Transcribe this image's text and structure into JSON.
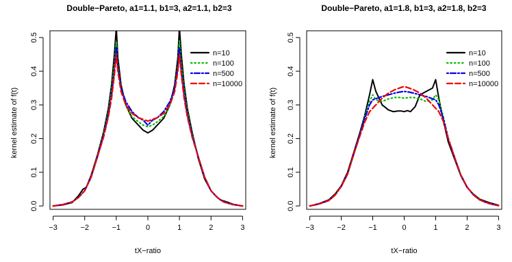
{
  "chart_data": [
    {
      "type": "line",
      "title": "Double−Pareto, a1=1.1, b1=3, a2=1.1, b2=3",
      "xlabel": "tX−ratio",
      "ylabel": "kernel estimate of f(t)",
      "xlim": [
        -3.1,
        3.1
      ],
      "ylim": [
        -0.01,
        0.52
      ],
      "xticks": [
        -3,
        -2,
        -1,
        0,
        1,
        2,
        3
      ],
      "xtick_labels": [
        "−3",
        "−2",
        "−1",
        "0",
        "1",
        "2",
        "3"
      ],
      "yticks": [
        0.0,
        0.1,
        0.2,
        0.3,
        0.4,
        0.5
      ],
      "ytick_labels": [
        "0.0",
        "0.1",
        "0.2",
        "0.3",
        "0.4",
        "0.5"
      ],
      "grid": false,
      "legend_position": "top-right",
      "series": [
        {
          "name": "n=10",
          "color": "#000000",
          "line_style": "solid",
          "x": [
            -3.0,
            -2.7,
            -2.4,
            -2.2,
            -2.05,
            -1.95,
            -1.8,
            -1.6,
            -1.4,
            -1.25,
            -1.15,
            -1.06,
            -1.0,
            -0.95,
            -0.85,
            -0.7,
            -0.5,
            -0.3,
            -0.15,
            0.0,
            0.15,
            0.3,
            0.5,
            0.7,
            0.85,
            0.95,
            1.0,
            1.06,
            1.15,
            1.25,
            1.4,
            1.6,
            1.8,
            2.0,
            2.15,
            2.3,
            2.5,
            2.7,
            3.0
          ],
          "y": [
            0.0,
            0.003,
            0.01,
            0.03,
            0.05,
            0.055,
            0.09,
            0.15,
            0.22,
            0.29,
            0.36,
            0.45,
            0.53,
            0.44,
            0.36,
            0.3,
            0.26,
            0.24,
            0.225,
            0.217,
            0.225,
            0.24,
            0.26,
            0.3,
            0.36,
            0.44,
            0.53,
            0.45,
            0.36,
            0.29,
            0.22,
            0.14,
            0.08,
            0.045,
            0.03,
            0.018,
            0.012,
            0.005,
            0.0
          ]
        },
        {
          "name": "n=100",
          "color": "#00bb00",
          "line_style": "dotted",
          "x": [
            -3.0,
            -2.7,
            -2.4,
            -2.2,
            -2.0,
            -1.8,
            -1.6,
            -1.4,
            -1.25,
            -1.15,
            -1.06,
            -1.0,
            -0.95,
            -0.85,
            -0.7,
            -0.5,
            -0.3,
            -0.15,
            0.0,
            0.15,
            0.3,
            0.5,
            0.7,
            0.85,
            0.95,
            1.0,
            1.06,
            1.15,
            1.25,
            1.4,
            1.6,
            1.8,
            2.0,
            2.2,
            2.4,
            2.7,
            3.0
          ],
          "y": [
            0.0,
            0.004,
            0.012,
            0.025,
            0.045,
            0.085,
            0.145,
            0.215,
            0.28,
            0.345,
            0.42,
            0.49,
            0.42,
            0.35,
            0.3,
            0.265,
            0.25,
            0.24,
            0.235,
            0.24,
            0.25,
            0.265,
            0.3,
            0.35,
            0.42,
            0.49,
            0.42,
            0.345,
            0.28,
            0.215,
            0.145,
            0.085,
            0.045,
            0.025,
            0.012,
            0.004,
            0.0
          ]
        },
        {
          "name": "n=500",
          "color": "#0000ee",
          "line_style": "dotdash",
          "x": [
            -3.0,
            -2.7,
            -2.4,
            -2.2,
            -2.0,
            -1.8,
            -1.6,
            -1.4,
            -1.25,
            -1.15,
            -1.06,
            -1.0,
            -0.95,
            -0.85,
            -0.7,
            -0.5,
            -0.3,
            -0.15,
            0.0,
            0.15,
            0.3,
            0.5,
            0.7,
            0.85,
            0.95,
            1.0,
            1.06,
            1.15,
            1.25,
            1.4,
            1.6,
            1.8,
            2.0,
            2.2,
            2.4,
            2.7,
            3.0
          ],
          "y": [
            0.0,
            0.004,
            0.012,
            0.025,
            0.045,
            0.085,
            0.145,
            0.21,
            0.27,
            0.33,
            0.4,
            0.47,
            0.41,
            0.35,
            0.31,
            0.28,
            0.262,
            0.255,
            0.24,
            0.255,
            0.262,
            0.28,
            0.31,
            0.35,
            0.41,
            0.47,
            0.4,
            0.33,
            0.27,
            0.21,
            0.145,
            0.085,
            0.045,
            0.025,
            0.012,
            0.004,
            0.0
          ]
        },
        {
          "name": "n=10000",
          "color": "#ee0000",
          "line_style": "dashed",
          "x": [
            -3.0,
            -2.7,
            -2.4,
            -2.2,
            -2.0,
            -1.8,
            -1.6,
            -1.4,
            -1.25,
            -1.15,
            -1.06,
            -1.0,
            -0.95,
            -0.85,
            -0.7,
            -0.5,
            -0.3,
            -0.15,
            0.0,
            0.15,
            0.3,
            0.5,
            0.7,
            0.85,
            0.95,
            1.0,
            1.06,
            1.15,
            1.25,
            1.4,
            1.6,
            1.8,
            2.0,
            2.2,
            2.4,
            2.7,
            3.0
          ],
          "y": [
            0.0,
            0.004,
            0.012,
            0.025,
            0.045,
            0.085,
            0.145,
            0.205,
            0.265,
            0.32,
            0.39,
            0.45,
            0.4,
            0.34,
            0.3,
            0.275,
            0.262,
            0.257,
            0.252,
            0.257,
            0.262,
            0.275,
            0.3,
            0.34,
            0.4,
            0.45,
            0.39,
            0.32,
            0.265,
            0.205,
            0.145,
            0.085,
            0.045,
            0.025,
            0.012,
            0.004,
            0.0
          ]
        }
      ]
    },
    {
      "type": "line",
      "title": "Double−Pareto, a1=1.8, b1=3, a2=1.8, b2=3",
      "xlabel": "tX−ratio",
      "ylabel": "kernel estimate of f(t)",
      "xlim": [
        -3.1,
        3.1
      ],
      "ylim": [
        -0.01,
        0.52
      ],
      "xticks": [
        -3,
        -2,
        -1,
        0,
        1,
        2,
        3
      ],
      "xtick_labels": [
        "−3",
        "−2",
        "−1",
        "0",
        "1",
        "2",
        "3"
      ],
      "yticks": [
        0.0,
        0.1,
        0.2,
        0.3,
        0.4,
        0.5
      ],
      "ytick_labels": [
        "0.0",
        "0.1",
        "0.2",
        "0.3",
        "0.4",
        "0.5"
      ],
      "grid": false,
      "legend_position": "top-right",
      "series": [
        {
          "name": "n=10",
          "color": "#000000",
          "line_style": "solid",
          "x": [
            -3.0,
            -2.7,
            -2.4,
            -2.2,
            -2.0,
            -1.8,
            -1.6,
            -1.4,
            -1.25,
            -1.1,
            -1.0,
            -0.9,
            -0.7,
            -0.5,
            -0.35,
            -0.2,
            -0.1,
            0.0,
            0.1,
            0.2,
            0.35,
            0.5,
            0.7,
            0.9,
            1.0,
            1.1,
            1.25,
            1.4,
            1.6,
            1.8,
            2.0,
            2.2,
            2.4,
            2.7,
            3.0
          ],
          "y": [
            0.0,
            0.007,
            0.018,
            0.035,
            0.06,
            0.1,
            0.16,
            0.22,
            0.27,
            0.33,
            0.375,
            0.34,
            0.3,
            0.285,
            0.28,
            0.282,
            0.282,
            0.28,
            0.283,
            0.28,
            0.295,
            0.33,
            0.34,
            0.35,
            0.375,
            0.32,
            0.25,
            0.19,
            0.14,
            0.09,
            0.055,
            0.035,
            0.02,
            0.01,
            0.002
          ]
        },
        {
          "name": "n=100",
          "color": "#00bb00",
          "line_style": "dotted",
          "x": [
            -3.0,
            -2.7,
            -2.4,
            -2.2,
            -2.0,
            -1.8,
            -1.6,
            -1.4,
            -1.25,
            -1.1,
            -1.0,
            -0.9,
            -0.7,
            -0.5,
            -0.3,
            -0.15,
            0.0,
            0.15,
            0.3,
            0.5,
            0.7,
            0.9,
            1.0,
            1.1,
            1.25,
            1.4,
            1.6,
            1.8,
            2.0,
            2.2,
            2.4,
            2.7,
            3.0
          ],
          "y": [
            0.0,
            0.006,
            0.016,
            0.032,
            0.058,
            0.095,
            0.155,
            0.215,
            0.265,
            0.31,
            0.33,
            0.315,
            0.31,
            0.318,
            0.322,
            0.322,
            0.32,
            0.322,
            0.322,
            0.318,
            0.31,
            0.315,
            0.33,
            0.315,
            0.262,
            0.2,
            0.145,
            0.092,
            0.056,
            0.033,
            0.018,
            0.007,
            0.001
          ]
        },
        {
          "name": "n=500",
          "color": "#0000ee",
          "line_style": "dotdash",
          "x": [
            -3.0,
            -2.7,
            -2.4,
            -2.2,
            -2.0,
            -1.8,
            -1.6,
            -1.4,
            -1.25,
            -1.1,
            -1.0,
            -0.85,
            -0.7,
            -0.5,
            -0.3,
            -0.15,
            0.0,
            0.15,
            0.3,
            0.5,
            0.7,
            0.85,
            1.0,
            1.1,
            1.25,
            1.4,
            1.6,
            1.8,
            2.0,
            2.2,
            2.4,
            2.7,
            3.0
          ],
          "y": [
            0.0,
            0.006,
            0.016,
            0.032,
            0.058,
            0.095,
            0.155,
            0.215,
            0.26,
            0.3,
            0.315,
            0.32,
            0.325,
            0.33,
            0.335,
            0.338,
            0.34,
            0.338,
            0.335,
            0.33,
            0.325,
            0.32,
            0.315,
            0.3,
            0.258,
            0.2,
            0.145,
            0.092,
            0.056,
            0.033,
            0.018,
            0.007,
            0.001
          ]
        },
        {
          "name": "n=10000",
          "color": "#ee0000",
          "line_style": "dashed",
          "x": [
            -3.0,
            -2.7,
            -2.4,
            -2.2,
            -2.0,
            -1.8,
            -1.6,
            -1.4,
            -1.25,
            -1.1,
            -1.0,
            -0.85,
            -0.7,
            -0.5,
            -0.3,
            -0.15,
            0.0,
            0.15,
            0.3,
            0.5,
            0.7,
            0.85,
            1.0,
            1.1,
            1.25,
            1.4,
            1.6,
            1.8,
            2.0,
            2.2,
            2.4,
            2.7,
            3.0
          ],
          "y": [
            0.0,
            0.006,
            0.016,
            0.032,
            0.058,
            0.095,
            0.155,
            0.21,
            0.25,
            0.28,
            0.29,
            0.305,
            0.32,
            0.335,
            0.345,
            0.35,
            0.355,
            0.35,
            0.345,
            0.335,
            0.32,
            0.305,
            0.29,
            0.28,
            0.25,
            0.2,
            0.145,
            0.092,
            0.056,
            0.033,
            0.018,
            0.007,
            0.001
          ]
        }
      ]
    }
  ]
}
